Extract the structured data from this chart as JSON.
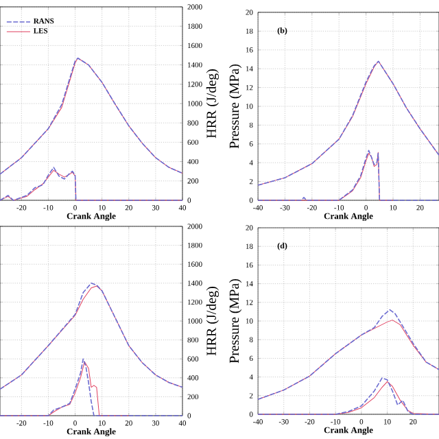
{
  "chart_data": [
    {
      "type": "line",
      "xlabel": "Crank Angle",
      "y2label": "HRR (J/deg)",
      "xlim": [
        -28,
        40
      ],
      "xticks": [
        -20,
        -10,
        0,
        10,
        20,
        30,
        40
      ],
      "y2lim": [
        0,
        2000
      ],
      "y2ticks": [
        0,
        200,
        400,
        600,
        800,
        1000,
        1200,
        1400,
        1600,
        1800,
        2000
      ],
      "grid": true,
      "legend": "top left",
      "series": [
        {
          "name": "RANS",
          "color": "#6b6bd0",
          "line_style": "dashed",
          "axis": "y2",
          "x": [
            -28,
            -20,
            -10,
            -5,
            0,
            1,
            5,
            10,
            15,
            20,
            25,
            30,
            35,
            40
          ],
          "values": [
            270,
            440,
            740,
            990,
            1440,
            1470,
            1400,
            1220,
            990,
            770,
            590,
            440,
            340,
            280
          ]
        },
        {
          "name": "LES",
          "color": "#e0405f",
          "line_style": "solid",
          "axis": "y2",
          "x": [
            -28,
            -20,
            -10,
            -5,
            0,
            1,
            5,
            10,
            15,
            20,
            25,
            30,
            35,
            40
          ],
          "values": [
            270,
            440,
            740,
            960,
            1420,
            1470,
            1400,
            1220,
            990,
            770,
            590,
            440,
            340,
            280
          ]
        },
        {
          "color": "#6b6bd0",
          "line_style": "dashed",
          "axis": "y2",
          "x": [
            -28,
            -25,
            -23,
            -18,
            -15,
            -12,
            -10,
            -8,
            -6,
            -4,
            -2,
            -1,
            0,
            0.3,
            10,
            20,
            30,
            40
          ],
          "values": [
            0,
            50,
            0,
            50,
            130,
            160,
            260,
            340,
            250,
            220,
            280,
            300,
            260,
            0,
            0,
            0,
            0,
            0
          ]
        },
        {
          "color": "#e0405f",
          "line_style": "solid",
          "axis": "y2",
          "x": [
            -28,
            -25,
            -23,
            -18,
            -15,
            -12,
            -10,
            -8,
            -6,
            -4,
            -2,
            -1,
            0,
            0.3,
            10,
            20,
            30,
            40
          ],
          "values": [
            0,
            40,
            0,
            40,
            110,
            170,
            240,
            310,
            270,
            240,
            270,
            290,
            250,
            0,
            0,
            0,
            0,
            0
          ]
        }
      ]
    },
    {
      "type": "line",
      "xlabel": "Crank Angle",
      "ylabel": "Pressure (MPa)",
      "xlim": [
        -40,
        27
      ],
      "xticks": [
        -40,
        -30,
        -20,
        -10,
        0,
        10,
        20
      ],
      "ylim": [
        0,
        20
      ],
      "yticks": [
        0,
        2,
        4,
        6,
        8,
        10,
        12,
        14,
        16,
        18,
        20
      ],
      "grid": true,
      "annotations": [
        "(b)"
      ],
      "series": [
        {
          "color": "#6b6bd0",
          "line_style": "dashed",
          "x": [
            -40,
            -30,
            -20,
            -10,
            -5,
            0,
            3,
            4.6,
            10,
            15,
            20,
            27
          ],
          "values": [
            1.6,
            2.4,
            3.9,
            6.5,
            9.0,
            12.6,
            14.3,
            14.8,
            12.4,
            9.8,
            7.6,
            4.8
          ]
        },
        {
          "color": "#e0405f",
          "line_style": "solid",
          "x": [
            -40,
            -30,
            -20,
            -10,
            -5,
            0,
            3,
            4.6,
            10,
            15,
            20,
            27
          ],
          "values": [
            1.6,
            2.4,
            3.9,
            6.5,
            8.9,
            12.4,
            14.2,
            14.8,
            12.4,
            9.8,
            7.6,
            4.8
          ]
        },
        {
          "color": "#6b6bd0",
          "line_style": "dashed",
          "x": [
            -40,
            -24,
            -23,
            -22,
            -10,
            -5,
            -2,
            0,
            1,
            2,
            3,
            4,
            4.5,
            5,
            10,
            20,
            27
          ],
          "values": [
            0,
            0,
            0.3,
            0,
            0,
            1.1,
            2.6,
            4.5,
            5.3,
            4.6,
            3.8,
            4.0,
            5.0,
            0,
            0,
            0,
            0
          ]
        },
        {
          "color": "#e0405f",
          "line_style": "solid",
          "x": [
            -40,
            -24,
            -23,
            -22,
            -10,
            -5,
            -2,
            0,
            1,
            2,
            3,
            4,
            4.5,
            5,
            10
          ],
          "values": [
            0,
            0,
            0,
            0,
            0,
            1.0,
            2.4,
            4.2,
            5.0,
            4.6,
            3.6,
            3.8,
            5.1,
            0,
            0
          ]
        }
      ]
    },
    {
      "type": "line",
      "xlabel": "Crank Angle",
      "y2label": "HRR (J/deg)",
      "xlim": [
        -28,
        40
      ],
      "xticks": [
        -20,
        -10,
        0,
        10,
        20,
        30,
        40
      ],
      "y2lim": [
        0,
        2000
      ],
      "y2ticks": [
        0,
        200,
        400,
        600,
        800,
        1000,
        1200,
        1400,
        1600,
        1800,
        2000
      ],
      "grid": true,
      "series": [
        {
          "color": "#6b6bd0",
          "line_style": "dashed",
          "axis": "y2",
          "x": [
            -28,
            -20,
            -10,
            0,
            3,
            6,
            8,
            10,
            15,
            20,
            25,
            30,
            35,
            40
          ],
          "values": [
            280,
            430,
            740,
            1070,
            1300,
            1400,
            1380,
            1320,
            1030,
            740,
            560,
            430,
            350,
            300
          ]
        },
        {
          "color": "#e0405f",
          "line_style": "solid",
          "axis": "y2",
          "x": [
            -28,
            -20,
            -10,
            0,
            3,
            6,
            8,
            10,
            15,
            20,
            25,
            30,
            35,
            40
          ],
          "values": [
            280,
            430,
            740,
            1060,
            1230,
            1350,
            1370,
            1320,
            1030,
            740,
            560,
            430,
            350,
            300
          ]
        },
        {
          "color": "#6b6bd0",
          "line_style": "dashed",
          "axis": "y2",
          "x": [
            -28,
            -10,
            -8,
            -5,
            -2,
            0,
            2,
            3,
            4,
            5,
            6,
            7,
            10,
            20,
            30,
            40
          ],
          "values": [
            0,
            0,
            60,
            90,
            130,
            280,
            450,
            600,
            520,
            350,
            150,
            0,
            0,
            0,
            0,
            0
          ]
        },
        {
          "color": "#e0405f",
          "line_style": "solid",
          "axis": "y2",
          "x": [
            -28,
            -10,
            -8,
            -5,
            -2,
            0,
            2,
            3.5,
            5,
            6,
            7,
            8,
            9,
            10,
            20
          ],
          "values": [
            0,
            0,
            40,
            90,
            120,
            240,
            400,
            570,
            500,
            300,
            320,
            300,
            0,
            0,
            0
          ]
        }
      ]
    },
    {
      "type": "line",
      "xlabel": "Crank Angle",
      "ylabel": "Pressure (MPa)",
      "xlim": [
        -40,
        30
      ],
      "xticks": [
        -40,
        -30,
        -20,
        -10,
        0,
        10,
        20
      ],
      "ylim": [
        0,
        20
      ],
      "yticks": [
        0,
        2,
        4,
        6,
        8,
        10,
        12,
        14,
        16,
        18,
        20
      ],
      "grid": true,
      "annotations": [
        "(d)"
      ],
      "series": [
        {
          "color": "#6b6bd0",
          "line_style": "dashed",
          "x": [
            -40,
            -30,
            -20,
            -10,
            0,
            5,
            8,
            11,
            13,
            15,
            20,
            25,
            30
          ],
          "values": [
            1.6,
            2.6,
            4.1,
            6.5,
            8.5,
            9.3,
            10.5,
            11.2,
            10.8,
            9.9,
            7.6,
            5.6,
            4.8
          ]
        },
        {
          "color": "#e0405f",
          "line_style": "solid",
          "x": [
            -40,
            -30,
            -20,
            -10,
            0,
            5,
            10,
            12,
            15,
            20,
            25,
            30
          ],
          "values": [
            1.6,
            2.6,
            4.1,
            6.5,
            8.5,
            9.2,
            9.9,
            10.1,
            9.6,
            7.4,
            5.6,
            4.8
          ]
        },
        {
          "color": "#6b6bd0",
          "line_style": "dashed",
          "x": [
            -40,
            -10,
            -5,
            0,
            5,
            8,
            10,
            12,
            14,
            16,
            18,
            20,
            30
          ],
          "values": [
            0,
            0,
            0.3,
            0.9,
            2.5,
            3.9,
            3.7,
            2.5,
            1.0,
            1.5,
            0.3,
            0,
            0
          ]
        },
        {
          "color": "#e0405f",
          "line_style": "solid",
          "x": [
            -40,
            -10,
            -5,
            0,
            5,
            8,
            10,
            12,
            15,
            18,
            20,
            30
          ],
          "values": [
            0,
            0,
            0.2,
            0.7,
            1.8,
            2.9,
            3.5,
            3.0,
            1.5,
            0.4,
            0.1,
            0
          ]
        }
      ]
    }
  ]
}
